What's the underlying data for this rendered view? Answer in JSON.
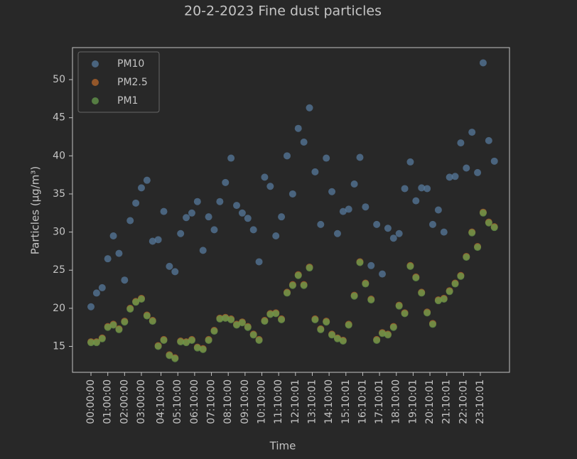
{
  "chart_data": {
    "type": "scatter",
    "title": "20-2-2023 Fine dust particles",
    "x_label": "Time",
    "y_label": "Particles (µg/m³)",
    "x": [
      0,
      0.333,
      0.667,
      1,
      1.333,
      1.667,
      2,
      2.333,
      2.667,
      3,
      3.333,
      3.667,
      4,
      4.333,
      4.667,
      5,
      5.333,
      5.667,
      6,
      6.333,
      6.667,
      7,
      7.333,
      7.667,
      8,
      8.333,
      8.667,
      9,
      9.333,
      9.667,
      10,
      10.333,
      10.667,
      11,
      11.333,
      11.667,
      12,
      12.333,
      12.667,
      13,
      13.333,
      13.667,
      14,
      14.333,
      14.667,
      15,
      15.333,
      15.667,
      16,
      16.333,
      16.667,
      17,
      17.333,
      17.667,
      18,
      18.333,
      18.667,
      19,
      19.333,
      19.667,
      20,
      20.333,
      20.667,
      21,
      21.333,
      21.667,
      22,
      22.333,
      22.667,
      23,
      23.333,
      23.667,
      24
    ],
    "series": [
      {
        "name": "PM10",
        "color": "#56789b",
        "values": [
          20.2,
          22,
          22.7,
          26.5,
          29.5,
          27.2,
          23.7,
          31.5,
          33.8,
          35.8,
          36.8,
          28.8,
          29,
          32.7,
          25.5,
          24.8,
          29.8,
          31.9,
          32.5,
          34,
          27.6,
          32,
          30.3,
          34,
          36.5,
          39.7,
          33.5,
          32.5,
          31.8,
          30.3,
          26.1,
          37.2,
          36,
          29.5,
          32,
          40,
          35,
          43.6,
          41.8,
          46.3,
          37.9,
          31,
          39.7,
          35.3,
          29.8,
          32.7,
          33,
          36.3,
          39.8,
          33.3,
          25.6,
          31,
          24.5,
          30.5,
          29.2,
          29.8,
          35.7,
          39.2,
          34.1,
          35.8,
          35.7,
          31,
          32.9,
          30,
          37.2,
          37.3,
          41.7,
          38.4,
          43.1,
          37.8,
          52.2,
          42,
          39.3
        ]
      },
      {
        "name": "PM2.5",
        "color": "#b8672b",
        "values": [
          15.6,
          15.6,
          16.1,
          17.6,
          17.9,
          17.3,
          18.3,
          20,
          20.9,
          21.3,
          19.1,
          18.4,
          15.1,
          15.9,
          13.9,
          13.5,
          15.7,
          15.6,
          15.9,
          14.9,
          14.7,
          15.9,
          17.1,
          18.7,
          18.8,
          18.6,
          17.9,
          18.2,
          17.6,
          16.6,
          15.9,
          18.4,
          19.3,
          19.4,
          18.6,
          22.1,
          23.1,
          24.4,
          23.1,
          25.4,
          18.6,
          17.3,
          18.3,
          16.6,
          16.1,
          15.8,
          17.9,
          21.7,
          26.1,
          23.3,
          21.2,
          15.9,
          16.8,
          16.6,
          17.6,
          20.4,
          19.4,
          25.6,
          24.1,
          22.1,
          19.5,
          18,
          21.1,
          21.3,
          22.3,
          23.3,
          24.3,
          26.8,
          30,
          28.1,
          32.6,
          31.3,
          30.7
        ]
      },
      {
        "name": "PM1",
        "color": "#659a4c",
        "values": [
          15.5,
          15.5,
          16,
          17.5,
          17.8,
          17.2,
          18.2,
          19.9,
          20.8,
          21.2,
          19,
          18.3,
          15,
          15.8,
          13.8,
          13.4,
          15.6,
          15.5,
          15.8,
          14.8,
          14.6,
          15.8,
          17,
          18.6,
          18.7,
          18.5,
          17.8,
          18.1,
          17.5,
          16.5,
          15.8,
          18.3,
          19.2,
          19.3,
          18.5,
          22,
          23,
          24.3,
          23,
          25.3,
          18.5,
          17.2,
          18.2,
          16.5,
          16,
          15.7,
          17.8,
          21.6,
          26,
          23.2,
          21.1,
          15.8,
          16.7,
          16.5,
          17.5,
          20.3,
          19.3,
          25.5,
          24,
          22,
          19.4,
          17.9,
          21,
          21.2,
          22.2,
          23.2,
          24.2,
          26.7,
          29.9,
          28,
          32.5,
          31.2,
          30.6
        ]
      }
    ],
    "xlim": [
      -1.1,
      24.9
    ],
    "ylim": [
      11.6,
      54.2
    ],
    "xticks": [
      {
        "value": 0,
        "label": "00:00:00"
      },
      {
        "value": 1,
        "label": "01:00:00"
      },
      {
        "value": 2,
        "label": "02:00:00"
      },
      {
        "value": 3,
        "label": "03:00:00"
      },
      {
        "value": 4.167,
        "label": "04:10:00"
      },
      {
        "value": 5.167,
        "label": "05:10:00"
      },
      {
        "value": 6.167,
        "label": "06:10:00"
      },
      {
        "value": 7.167,
        "label": "07:10:00"
      },
      {
        "value": 8.167,
        "label": "08:10:00"
      },
      {
        "value": 9.167,
        "label": "09:10:00"
      },
      {
        "value": 10.167,
        "label": "10:10:00"
      },
      {
        "value": 11.167,
        "label": "11:10:00"
      },
      {
        "value": 12.167,
        "label": "12:10:01"
      },
      {
        "value": 13.167,
        "label": "13:10:01"
      },
      {
        "value": 14.167,
        "label": "14:10:00"
      },
      {
        "value": 15.167,
        "label": "15:10:01"
      },
      {
        "value": 16.167,
        "label": "16:10:01"
      },
      {
        "value": 17.167,
        "label": "17:10:01"
      },
      {
        "value": 18.167,
        "label": "18:10:00"
      },
      {
        "value": 19.167,
        "label": "19:10:01"
      },
      {
        "value": 20.167,
        "label": "20:10:01"
      },
      {
        "value": 21.167,
        "label": "21:10:01"
      },
      {
        "value": 22.167,
        "label": "22:10:01"
      },
      {
        "value": 23.167,
        "label": "23:10:01"
      }
    ],
    "yticks": [
      15,
      20,
      25,
      30,
      35,
      40,
      45,
      50
    ],
    "legend": "upper left"
  }
}
